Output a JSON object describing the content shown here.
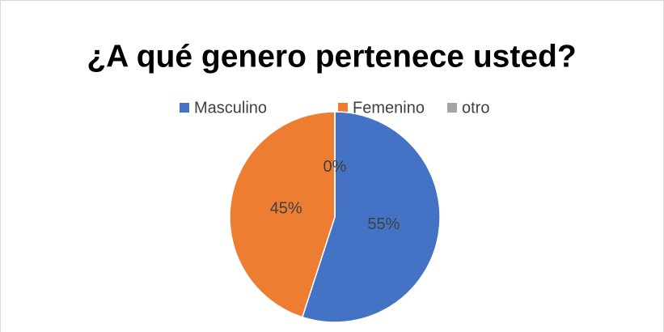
{
  "chart_data": {
    "type": "pie",
    "title": "¿A qué genero pertenece usted?",
    "categories": [
      "Masculino",
      "Femenino",
      "otro"
    ],
    "values": [
      55,
      45,
      0
    ],
    "value_labels": [
      "55%",
      "45%",
      "0%"
    ],
    "colors": [
      "#4472c4",
      "#ed7d31",
      "#a5a5a5"
    ],
    "legend": "top"
  }
}
